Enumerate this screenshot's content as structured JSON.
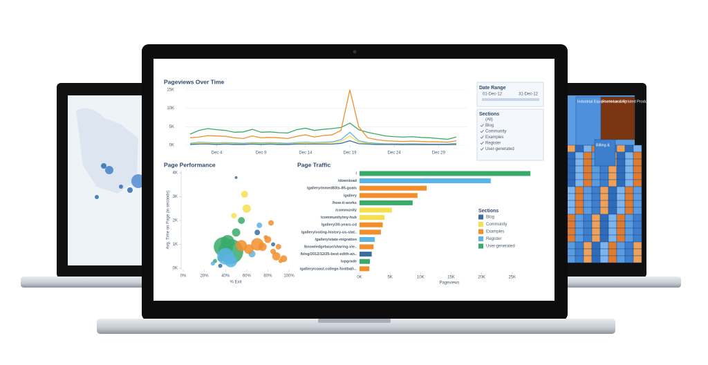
{
  "line_chart": {
    "title": "Pageviews Over Time",
    "x": [
      1,
      2,
      3,
      4,
      5,
      6,
      7,
      8,
      9,
      10,
      11,
      12,
      13,
      14,
      15,
      16,
      17,
      18,
      19,
      20,
      21,
      22,
      23,
      24,
      25,
      26,
      27,
      28,
      29,
      30,
      31
    ],
    "xlim": [
      1,
      31
    ],
    "xticks": [
      {
        "value": 4,
        "label": "Dec 4"
      },
      {
        "value": 9,
        "label": "Dec 9"
      },
      {
        "value": 14,
        "label": "Dec 14"
      },
      {
        "value": 19,
        "label": "Dec 19"
      },
      {
        "value": 24,
        "label": "Dec 24"
      },
      {
        "value": 29,
        "label": "Dec 29"
      }
    ],
    "ylim": [
      0,
      15000
    ],
    "yticks": [
      {
        "value": 0,
        "label": "0K"
      },
      {
        "value": 5000,
        "label": "5K"
      },
      {
        "value": 10000,
        "label": "10K"
      },
      {
        "value": 15000,
        "label": "15K"
      }
    ],
    "series": [
      {
        "color": "#3aaa6a",
        "values": [
          3000,
          4000,
          4500,
          4200,
          4000,
          3500,
          3600,
          4300,
          3500,
          3600,
          3400,
          3300,
          4200,
          4600,
          4000,
          4300,
          4500,
          4800,
          6000,
          4200,
          3500,
          3000,
          2500,
          2300,
          2200,
          2300,
          2100,
          2000,
          1800,
          1600,
          2200
        ]
      },
      {
        "color": "#f28e2b",
        "values": [
          2000,
          2200,
          2600,
          2500,
          2400,
          2000,
          1800,
          2500,
          2000,
          2100,
          2000,
          1800,
          2400,
          2800,
          2200,
          2600,
          2800,
          4000,
          15000,
          5000,
          2000,
          1500,
          1200,
          1100,
          1000,
          1100,
          1000,
          900,
          900,
          800,
          1200
        ]
      },
      {
        "color": "#5ab4e5",
        "values": [
          500,
          800,
          700,
          600,
          700,
          600,
          500,
          700,
          600,
          700,
          600,
          500,
          700,
          800,
          700,
          800,
          900,
          1500,
          3500,
          1200,
          700,
          500,
          400,
          400,
          350,
          400,
          350,
          300,
          300,
          300,
          500
        ]
      },
      {
        "color": "#f4e04d",
        "values": [
          300,
          600,
          500,
          400,
          500,
          400,
          300,
          500,
          400,
          500,
          400,
          300,
          500,
          600,
          500,
          600,
          700,
          1000,
          2500,
          800,
          500,
          300,
          300,
          300,
          200,
          300,
          200,
          200,
          200,
          200,
          300
        ]
      },
      {
        "color": "#3b6e9e",
        "values": [
          200,
          300,
          300,
          200,
          300,
          200,
          200,
          300,
          200,
          300,
          200,
          200,
          300,
          300,
          300,
          300,
          300,
          500,
          1200,
          400,
          300,
          200,
          200,
          200,
          150,
          200,
          150,
          150,
          150,
          150,
          200
        ]
      }
    ]
  },
  "date_range": {
    "title": "Date Range",
    "start": "01-Dec-12",
    "end": "31-Dec-12"
  },
  "filter_sections": {
    "title": "Sections",
    "items": [
      "(All)",
      "Blog",
      "Community",
      "Examples",
      "Register",
      "User-generated"
    ]
  },
  "scatter_chart": {
    "title": "Page Performance",
    "y_label": "Avg. Time on Page (in seconds)",
    "x_label": "% Exit",
    "xlim": [
      0,
      100
    ],
    "xticks": [
      {
        "value": 0,
        "label": "0%"
      },
      {
        "value": 20,
        "label": "20%"
      },
      {
        "value": 40,
        "label": "40%"
      },
      {
        "value": 60,
        "label": "60%"
      },
      {
        "value": 80,
        "label": "80%"
      },
      {
        "value": 100,
        "label": "100%"
      }
    ],
    "ylim": [
      0,
      4000
    ],
    "yticks": [
      {
        "value": 0,
        "label": "0K"
      },
      {
        "value": 1000,
        "label": "1K"
      },
      {
        "value": 2000,
        "label": "2K"
      },
      {
        "value": 3000,
        "label": "3K"
      },
      {
        "value": 4000,
        "label": "4K"
      }
    ],
    "series": [
      {
        "color": "#3aaa6a",
        "x": [
          38,
          42,
          45,
          50,
          35,
          55,
          30
        ],
        "values": [
          900,
          1100,
          700,
          1500,
          400,
          2000,
          300
        ],
        "sizes": [
          14,
          10,
          18,
          6,
          4,
          5,
          3
        ]
      },
      {
        "color": "#5ab4e5",
        "x": [
          40,
          45,
          72,
          28,
          65
        ],
        "values": [
          500,
          300,
          1800,
          200,
          600
        ],
        "sizes": [
          12,
          9,
          4,
          3,
          5
        ]
      },
      {
        "color": "#f28e2b",
        "x": [
          55,
          62,
          70,
          75,
          80,
          85,
          88,
          90,
          92,
          95,
          78,
          83
        ],
        "values": [
          950,
          800,
          1000,
          900,
          1200,
          700,
          500,
          900,
          300,
          400,
          1300,
          1900
        ],
        "sizes": [
          8,
          7,
          9,
          6,
          5,
          4,
          6,
          4,
          3,
          5,
          3,
          4
        ]
      },
      {
        "color": "#f4e04d",
        "x": [
          60,
          58,
          48
        ],
        "values": [
          2500,
          3100,
          2200
        ],
        "sizes": [
          6,
          5,
          4
        ]
      },
      {
        "color": "#3b6e9e",
        "x": [
          70,
          85,
          50,
          35
        ],
        "values": [
          1500,
          1000,
          3800,
          100
        ],
        "sizes": [
          4,
          3,
          2,
          3
        ]
      }
    ]
  },
  "bar_chart": {
    "title": "Page Traffic",
    "x_label": "Pageviews",
    "categories": [
      "/",
      "/download",
      "/gallery/mmed83ts-85-goals",
      "/gallery",
      "/how-it-works",
      "/community",
      "/community/my-hub",
      "/gallery/30-years-cd",
      "/gallery/voting-history-us-stat..",
      "/gallery/state-migration",
      "/knowledgebase/sharing-vie..",
      "/blog/2012/12/25-best-edith-an..",
      "/upgrade",
      "/gallery/coast.college-football-.."
    ],
    "values": [
      28000,
      21500,
      11000,
      9500,
      8700,
      5300,
      4100,
      3800,
      3500,
      2500,
      2300,
      2000,
      1700,
      1600
    ],
    "colors": [
      "#3aaa6a",
      "#5ab4e5",
      "#f28e2b",
      "#f28e2b",
      "#3aaa6a",
      "#f4e04d",
      "#f4e04d",
      "#f28e2b",
      "#f28e2b",
      "#5ab4e5",
      "#f28e2b",
      "#3b6e9e",
      "#3aaa6a",
      "#f28e2b"
    ],
    "xlim": [
      0,
      29000
    ],
    "xticks": [
      {
        "value": 0,
        "label": "0K"
      },
      {
        "value": 5000,
        "label": "5K"
      },
      {
        "value": 10000,
        "label": "10K"
      },
      {
        "value": 15000,
        "label": "15K"
      },
      {
        "value": 20000,
        "label": "20K"
      },
      {
        "value": 25000,
        "label": "25K"
      }
    ],
    "legend": {
      "title": "Sections",
      "items": [
        {
          "name": "Blog",
          "color": "#3b6e9e"
        },
        {
          "name": "Community",
          "color": "#f4e04d"
        },
        {
          "name": "Examples",
          "color": "#f28e2b"
        },
        {
          "name": "Register",
          "color": "#5ab4e5"
        },
        {
          "name": "User-generated",
          "color": "#3aaa6a"
        }
      ]
    }
  },
  "right_screen": {
    "labels": [
      "Industrial Equipment Leasing",
      "Footwear & Related Products Retail",
      "Billing &"
    ]
  }
}
